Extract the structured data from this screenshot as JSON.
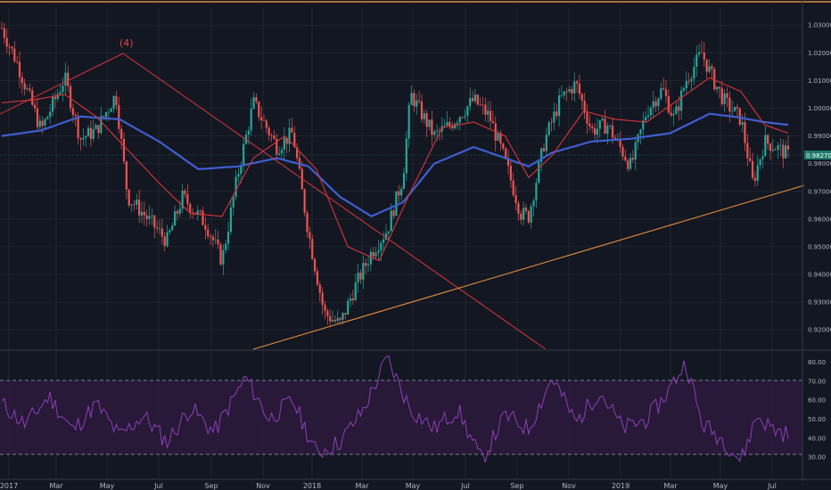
{
  "chart_data": [
    {
      "type": "candlestick",
      "y_ticks": [
        "1.03000",
        "1.02000",
        "1.01000",
        "1.00000",
        "0.99000",
        "0.98000",
        "0.97000",
        "0.96000",
        "0.95000",
        "0.94000",
        "0.93000",
        "0.92000"
      ],
      "x_ticks": [
        "2017",
        "Mar",
        "May",
        "Jul",
        "Sep",
        "Nov",
        "2018",
        "Mar",
        "May",
        "Jul",
        "Sep",
        "Nov",
        "2019",
        "Mar",
        "May",
        "Jul"
      ],
      "ylim": [
        0.913,
        1.0365
      ],
      "last_value": "0.98270",
      "annotation": "(4)",
      "series": [
        {
          "kind": "price",
          "anchors": [
            [
              0,
              1.029
            ],
            [
              0.02,
              1.016
            ],
            [
              0.05,
              0.992
            ],
            [
              0.08,
              1.011
            ],
            [
              0.1,
              0.989
            ],
            [
              0.12,
              0.992
            ],
            [
              0.145,
              1.005
            ],
            [
              0.16,
              0.968
            ],
            [
              0.18,
              0.962
            ],
            [
              0.21,
              0.952
            ],
            [
              0.23,
              0.968
            ],
            [
              0.26,
              0.958
            ],
            [
              0.28,
              0.945
            ],
            [
              0.3,
              0.976
            ],
            [
              0.32,
              1.002
            ],
            [
              0.35,
              0.986
            ],
            [
              0.37,
              0.991
            ],
            [
              0.39,
              0.955
            ],
            [
              0.41,
              0.926
            ],
            [
              0.43,
              0.922
            ],
            [
              0.45,
              0.936
            ],
            [
              0.47,
              0.948
            ],
            [
              0.49,
              0.956
            ],
            [
              0.51,
              0.975
            ],
            [
              0.52,
              1.005
            ],
            [
              0.55,
              0.99
            ],
            [
              0.57,
              0.994
            ],
            [
              0.6,
              1.003
            ],
            [
              0.62,
              0.997
            ],
            [
              0.64,
              0.981
            ],
            [
              0.66,
              0.962
            ],
            [
              0.67,
              0.961
            ],
            [
              0.69,
              0.988
            ],
            [
              0.71,
              1.003
            ],
            [
              0.73,
              1.009
            ],
            [
              0.75,
              0.992
            ],
            [
              0.77,
              0.994
            ],
            [
              0.79,
              0.984
            ],
            [
              0.8,
              0.979
            ],
            [
              0.82,
              0.999
            ],
            [
              0.84,
              1.007
            ],
            [
              0.855,
              0.996
            ],
            [
              0.87,
              1.01
            ],
            [
              0.89,
              1.02
            ],
            [
              0.905,
              1.01
            ],
            [
              0.92,
              1.002
            ],
            [
              0.94,
              0.996
            ],
            [
              0.955,
              0.973
            ],
            [
              0.97,
              0.988
            ],
            [
              0.985,
              0.986
            ],
            [
              1,
              0.983
            ]
          ]
        },
        {
          "kind": "ma200",
          "color": "#3f5ed1",
          "anchors": [
            [
              0,
              0.99
            ],
            [
              0.05,
              0.992
            ],
            [
              0.1,
              0.997
            ],
            [
              0.15,
              0.996
            ],
            [
              0.2,
              0.988
            ],
            [
              0.25,
              0.978
            ],
            [
              0.3,
              0.979
            ],
            [
              0.35,
              0.982
            ],
            [
              0.39,
              0.979
            ],
            [
              0.43,
              0.968
            ],
            [
              0.47,
              0.961
            ],
            [
              0.51,
              0.966
            ],
            [
              0.55,
              0.98
            ],
            [
              0.6,
              0.986
            ],
            [
              0.64,
              0.982
            ],
            [
              0.67,
              0.979
            ],
            [
              0.7,
              0.984
            ],
            [
              0.75,
              0.988
            ],
            [
              0.8,
              0.989
            ],
            [
              0.85,
              0.991
            ],
            [
              0.9,
              0.998
            ],
            [
              0.93,
              0.997
            ],
            [
              0.97,
              0.995
            ],
            [
              1,
              0.994
            ]
          ]
        },
        {
          "kind": "ma50",
          "color": "#d9353a",
          "anchors": [
            [
              0,
              1.002
            ],
            [
              0.04,
              1.003
            ],
            [
              0.08,
              1.005
            ],
            [
              0.12,
              0.997
            ],
            [
              0.16,
              0.985
            ],
            [
              0.2,
              0.973
            ],
            [
              0.24,
              0.962
            ],
            [
              0.28,
              0.961
            ],
            [
              0.32,
              0.982
            ],
            [
              0.36,
              0.99
            ],
            [
              0.4,
              0.978
            ],
            [
              0.44,
              0.95
            ],
            [
              0.48,
              0.945
            ],
            [
              0.52,
              0.97
            ],
            [
              0.56,
              0.993
            ],
            [
              0.6,
              0.995
            ],
            [
              0.64,
              0.99
            ],
            [
              0.67,
              0.975
            ],
            [
              0.7,
              0.983
            ],
            [
              0.74,
              0.999
            ],
            [
              0.78,
              0.996
            ],
            [
              0.82,
              0.995
            ],
            [
              0.86,
              1.003
            ],
            [
              0.9,
              1.011
            ],
            [
              0.94,
              1.006
            ],
            [
              0.97,
              0.994
            ],
            [
              1,
              0.991
            ]
          ]
        },
        {
          "kind": "rsi",
          "color": "#8d3fb8",
          "ylim": [
            23,
            84
          ],
          "anchors": [
            [
              0,
              58
            ],
            [
              0.03,
              47
            ],
            [
              0.06,
              62
            ],
            [
              0.09,
              44
            ],
            [
              0.12,
              58
            ],
            [
              0.15,
              41
            ],
            [
              0.18,
              52
            ],
            [
              0.21,
              38
            ],
            [
              0.24,
              56
            ],
            [
              0.27,
              43
            ],
            [
              0.31,
              72
            ],
            [
              0.34,
              50
            ],
            [
              0.37,
              60
            ],
            [
              0.4,
              32
            ],
            [
              0.43,
              38
            ],
            [
              0.46,
              55
            ],
            [
              0.49,
              82
            ],
            [
              0.52,
              55
            ],
            [
              0.55,
              45
            ],
            [
              0.58,
              55
            ],
            [
              0.61,
              28
            ],
            [
              0.64,
              52
            ],
            [
              0.67,
              45
            ],
            [
              0.7,
              72
            ],
            [
              0.73,
              48
            ],
            [
              0.76,
              65
            ],
            [
              0.79,
              45
            ],
            [
              0.82,
              50
            ],
            [
              0.84,
              60
            ],
            [
              0.87,
              80
            ],
            [
              0.89,
              48
            ],
            [
              0.92,
              38
            ],
            [
              0.94,
              28
            ],
            [
              0.96,
              52
            ],
            [
              0.98,
              45
            ],
            [
              1,
              42
            ]
          ]
        }
      ],
      "rsi_ticks": [
        "80.00",
        "70.00",
        "60.00",
        "50.00",
        "40.00",
        "30.00"
      ],
      "colors": {
        "bg": "#131722",
        "up": "#26a69a",
        "down": "#ef5350",
        "grid": "#2a2e39",
        "rsi_band": "#2a1a3a",
        "trendline": "#e08a3c",
        "fan": "#d9353a",
        "last_label_bg": "#1e7a6a"
      }
    }
  ]
}
